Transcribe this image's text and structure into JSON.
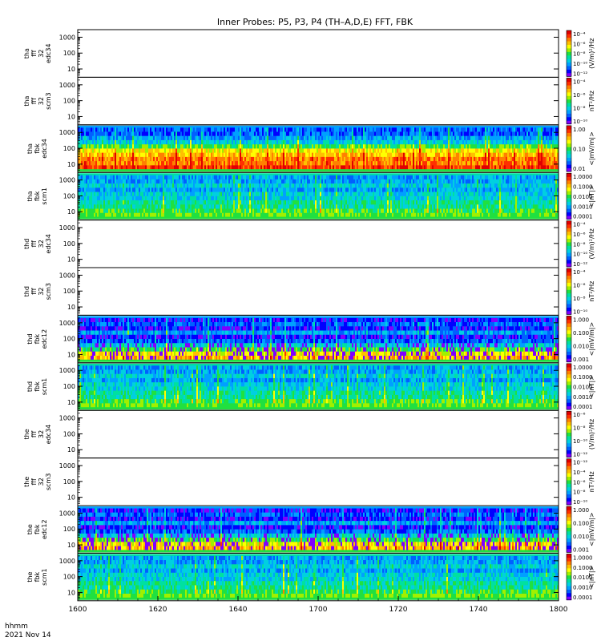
{
  "title": "Inner Probes: P5, P3, P4 (TH–A,D,E) FFT, FBK",
  "xaxis": {
    "ticks": [
      "1600",
      "1620",
      "1640",
      "1700",
      "1720",
      "1740",
      "1800"
    ],
    "label_line1": "hhmm",
    "label_line2": "2021 Nov 14"
  },
  "chart_data": {
    "type": "heatmap",
    "xlim": [
      "1600",
      "1800"
    ],
    "x_tick_labels": [
      "1600",
      "1620",
      "1640",
      "1700",
      "1720",
      "1740",
      "1800"
    ],
    "y_scale": "log",
    "y_tick_labels": [
      "10",
      "100",
      "1000"
    ],
    "panels": [
      {
        "id": "tha-fff-edc34",
        "ylabel": [
          "tha",
          "fff",
          "32",
          "edc34"
        ],
        "ytick_labels": [
          "10",
          "100",
          "1000"
        ],
        "cbar_label": "(V/m)²/Hz",
        "cbar_ticks": [
          "10⁻⁴",
          "10⁻⁶",
          "10⁻⁸",
          "10⁻¹⁰",
          "10⁻¹²"
        ],
        "empty": true
      },
      {
        "id": "tha-fff-scm3",
        "ylabel": [
          "tha",
          "fff",
          "32",
          "scm3"
        ],
        "ytick_labels": [
          "10",
          "100",
          "1000"
        ],
        "cbar_label": "nT²/Hz",
        "cbar_ticks": [
          "10⁻⁴",
          "10⁻⁶",
          "10⁻⁸",
          "10⁻¹⁰"
        ],
        "empty": true
      },
      {
        "id": "tha-fbk-edc34",
        "ylabel": [
          "tha",
          "fbk",
          "edc34"
        ],
        "ytick_labels": [
          "10",
          "100",
          "1000"
        ],
        "cbar_label": "<|mV/m|>",
        "cbar_ticks": [
          "1.00",
          "0.10",
          "0.01"
        ],
        "pattern": "edc-a"
      },
      {
        "id": "tha-fbk-scm1",
        "ylabel": [
          "tha",
          "fbk",
          "scm1"
        ],
        "ytick_labels": [
          "10",
          "100",
          "1000"
        ],
        "cbar_label": "<|nT|>",
        "cbar_ticks": [
          "1.0000",
          "0.1000",
          "0.0100",
          "0.0010",
          "0.0001"
        ],
        "pattern": "scm-a"
      },
      {
        "id": "thd-fff-edc34",
        "ylabel": [
          "thd",
          "fff",
          "32",
          "edc34"
        ],
        "ytick_labels": [
          "10",
          "100",
          "1000"
        ],
        "cbar_label": "(V/m)²/Hz",
        "cbar_ticks": [
          "10⁻⁴",
          "10⁻⁶",
          "10⁻⁸",
          "10⁻¹⁰",
          "10⁻¹²"
        ],
        "empty": true
      },
      {
        "id": "thd-fff-scm3",
        "ylabel": [
          "thd",
          "fff",
          "32",
          "scm3"
        ],
        "ytick_labels": [
          "10",
          "100",
          "1000"
        ],
        "cbar_label": "nT²/Hz",
        "cbar_ticks": [
          "10⁻⁴",
          "10⁻⁶",
          "10⁻⁸",
          "10⁻¹⁰"
        ],
        "empty": true
      },
      {
        "id": "thd-fbk-edc12",
        "ylabel": [
          "thd",
          "fbk",
          "edc12"
        ],
        "ytick_labels": [
          "10",
          "100",
          "1000"
        ],
        "cbar_label": "<|mV/m|>",
        "cbar_ticks": [
          "1.000",
          "0.100",
          "0.010",
          "0.001"
        ],
        "pattern": "edc-d"
      },
      {
        "id": "thd-fbk-scm1",
        "ylabel": [
          "thd",
          "fbk",
          "scm1"
        ],
        "ytick_labels": [
          "10",
          "100",
          "1000"
        ],
        "cbar_label": "<|nT|>",
        "cbar_ticks": [
          "1.0000",
          "0.1000",
          "0.0100",
          "0.0010",
          "0.0001"
        ],
        "pattern": "scm-d"
      },
      {
        "id": "the-fff-edc34",
        "ylabel": [
          "the",
          "fff",
          "32",
          "edc34"
        ],
        "ytick_labels": [
          "10",
          "100",
          "1000"
        ],
        "cbar_label": "(V/m)²/Hz",
        "cbar_ticks": [
          "10⁻⁶",
          "10⁻⁸",
          "10⁻¹⁰",
          "10⁻¹²"
        ],
        "empty": true
      },
      {
        "id": "the-fff-scm3",
        "ylabel": [
          "the",
          "fff",
          "32",
          "scm3"
        ],
        "ytick_labels": [
          "10",
          "100",
          "1000"
        ],
        "cbar_label": "nT²/Hz",
        "cbar_ticks": [
          "10⁻¹²",
          "10⁻⁴",
          "10⁻⁶",
          "10⁻⁸",
          "10⁻¹⁰"
        ],
        "empty": true
      },
      {
        "id": "the-fbk-edc12",
        "ylabel": [
          "the",
          "fbk",
          "edc12"
        ],
        "ytick_labels": [
          "10",
          "100",
          "1000"
        ],
        "cbar_label": "<|mV/m|>",
        "cbar_ticks": [
          "1.000",
          "0.100",
          "0.010",
          "0.001"
        ],
        "pattern": "edc-e"
      },
      {
        "id": "the-fbk-scm1",
        "ylabel": [
          "the",
          "fbk",
          "scm1"
        ],
        "ytick_labels": [
          "10",
          "100",
          "1000"
        ],
        "cbar_label": "<|nT|>",
        "cbar_ticks": [
          "1.0000",
          "0.1000",
          "0.0100",
          "0.0010",
          "0.0001"
        ],
        "pattern": "scm-e"
      }
    ],
    "colormap": [
      "#7f00ff",
      "#0000ff",
      "#0060ff",
      "#00a0ff",
      "#00d0e0",
      "#00e0a0",
      "#20e040",
      "#a0f000",
      "#ffff00",
      "#ffc000",
      "#ff8000",
      "#ff3000",
      "#e00000"
    ]
  }
}
